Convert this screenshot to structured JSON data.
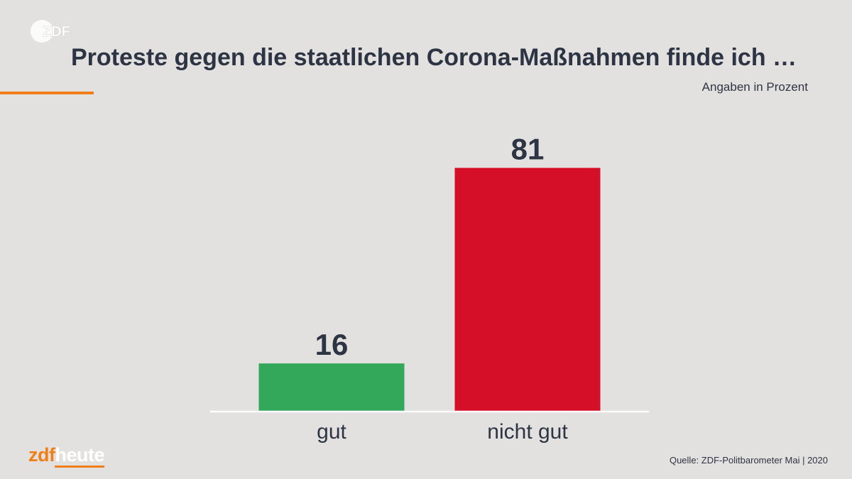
{
  "logo_text": "ZDF",
  "title": "Proteste gegen die staatlichen Corona-Maßnahmen finde ich …",
  "subtitle": "Angaben in Prozent",
  "brand": {
    "part1": "zdf",
    "part2": "heute"
  },
  "source": "Quelle: ZDF-Politbarometer Mai | 2020",
  "colors": {
    "background": "#e3e1df",
    "accent": "#f07f1a",
    "text": "#2d3443"
  },
  "chart_data": {
    "type": "bar",
    "title": "Proteste gegen die staatlichen Corona-Maßnahmen finde ich …",
    "unit": "Angaben in Prozent",
    "categories": [
      "gut",
      "nicht gut"
    ],
    "values": [
      16,
      81
    ],
    "colors": [
      "#33a85a",
      "#d50f27"
    ],
    "ylim": [
      0,
      100
    ],
    "grid": false,
    "legend": "none"
  }
}
